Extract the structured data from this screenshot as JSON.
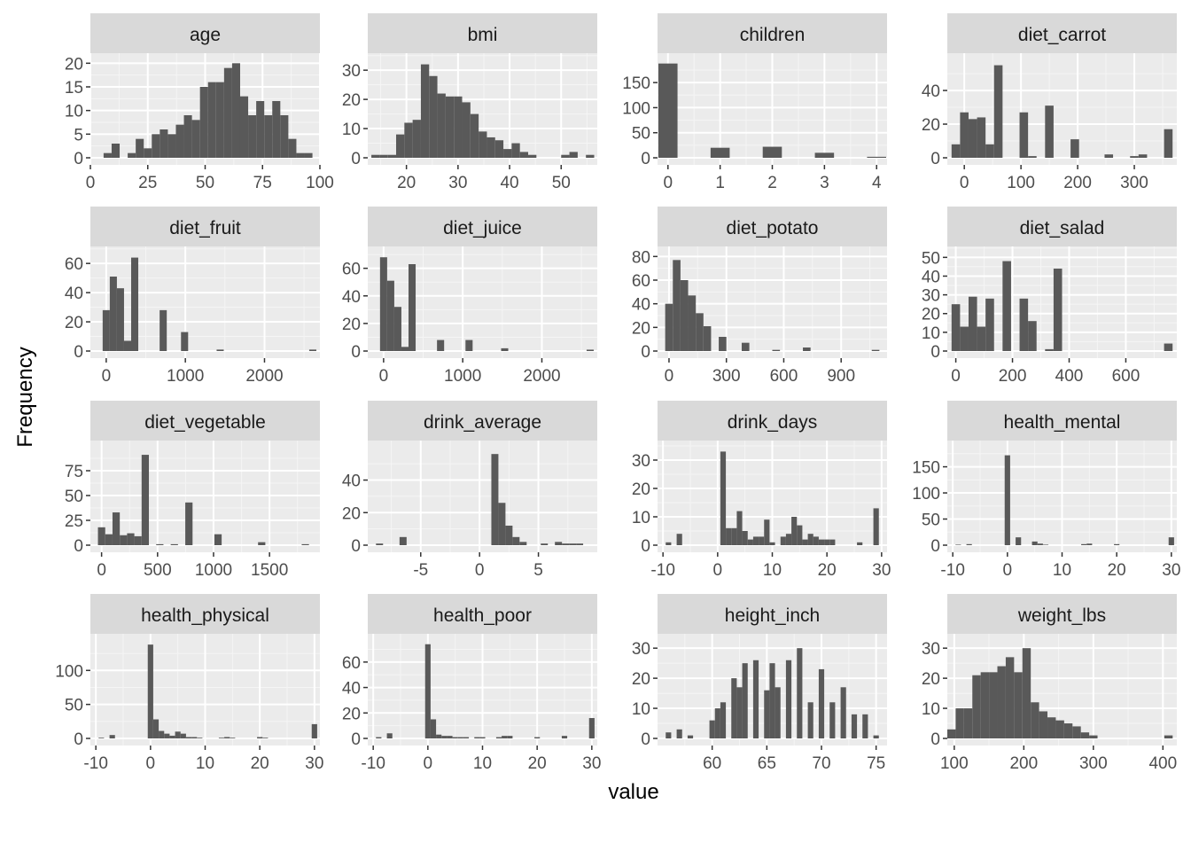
{
  "chart_data": {
    "type": "bar",
    "xlabel": "value",
    "ylabel": "Frequency",
    "facets": [
      {
        "name": "age",
        "xlim": [
          0,
          100
        ],
        "xticks": [
          0,
          25,
          50,
          75,
          100
        ],
        "yticks": [
          0,
          5,
          10,
          15,
          20
        ],
        "ylim": [
          0,
          21
        ],
        "x": [
          4,
          7.5,
          11,
          14.5,
          18,
          21.5,
          25,
          28.5,
          32,
          35.5,
          39,
          42.5,
          46,
          49.5,
          53,
          56.5,
          60,
          63.5,
          67,
          70.5,
          74,
          77.5,
          81,
          84.5,
          88,
          91.5,
          95
        ],
        "values": [
          0,
          1,
          3,
          0,
          1,
          4,
          2,
          5,
          6,
          5,
          7,
          9,
          8,
          15,
          16,
          16,
          19,
          20,
          13,
          9,
          12,
          9,
          12,
          9,
          4,
          1,
          1
        ]
      },
      {
        "name": "bmi",
        "xlim": [
          12.5,
          57
        ],
        "xticks": [
          20,
          30,
          40,
          50
        ],
        "yticks": [
          0,
          10,
          20,
          30
        ],
        "ylim": [
          0,
          34
        ],
        "x": [
          14,
          15.6,
          17.2,
          18.8,
          20.4,
          22,
          23.6,
          25.2,
          26.8,
          28.4,
          30,
          31.6,
          33.2,
          34.8,
          36.4,
          38,
          39.6,
          41.2,
          42.8,
          44.4,
          46,
          47.6,
          49.2,
          50.8,
          52.4,
          54,
          55.6
        ],
        "values": [
          1,
          1,
          1,
          8,
          12,
          13,
          32,
          28,
          22,
          21,
          21,
          19,
          15,
          9,
          7,
          6,
          3,
          5,
          2,
          1,
          0,
          0,
          0,
          1,
          2,
          0,
          1
        ]
      },
      {
        "name": "children",
        "xlim": [
          -0.2,
          4.2
        ],
        "xticks": [
          0,
          1,
          2,
          3,
          4
        ],
        "yticks": [
          0,
          50,
          100,
          150
        ],
        "ylim": [
          0,
          198
        ],
        "x": [
          0,
          1,
          2,
          3,
          4
        ],
        "values": [
          188,
          20,
          22,
          10,
          2
        ]
      },
      {
        "name": "diet_carrot",
        "xlim": [
          -30,
          375
        ],
        "xticks": [
          0,
          100,
          200,
          300
        ],
        "yticks": [
          0,
          20,
          40
        ],
        "ylim": [
          0,
          59
        ],
        "x": [
          -15,
          0,
          15,
          30,
          45,
          60,
          75,
          90,
          105,
          120,
          135,
          150,
          165,
          180,
          195,
          210,
          225,
          240,
          255,
          270,
          285,
          300,
          315,
          330,
          345,
          360
        ],
        "values": [
          8,
          27,
          23,
          24,
          8,
          55,
          0,
          0,
          27,
          1,
          0,
          31,
          0,
          0,
          11,
          0,
          0,
          0,
          2,
          0,
          0,
          1,
          2,
          0,
          0,
          17
        ]
      },
      {
        "name": "diet_fruit",
        "xlim": [
          -200,
          2700
        ],
        "xticks": [
          0,
          1000,
          2000
        ],
        "yticks": [
          0,
          20,
          40,
          60
        ],
        "ylim": [
          0,
          68
        ],
        "x": [
          0,
          90,
          180,
          270,
          360,
          450,
          540,
          630,
          720,
          810,
          900,
          990,
          1080,
          1440,
          1530,
          2520,
          2610
        ],
        "values": [
          28,
          51,
          43,
          7,
          64,
          0,
          0,
          0,
          28,
          0,
          0,
          13,
          0,
          1,
          0,
          0,
          1
        ]
      },
      {
        "name": "diet_juice",
        "xlim": [
          -200,
          2700
        ],
        "xticks": [
          0,
          1000,
          2000
        ],
        "yticks": [
          0,
          20,
          40,
          60
        ],
        "ylim": [
          0,
          72
        ],
        "x": [
          0,
          90,
          180,
          270,
          360,
          720,
          1080,
          1530,
          2610
        ],
        "values": [
          68,
          51,
          32,
          3,
          63,
          8,
          8,
          2,
          1
        ]
      },
      {
        "name": "diet_potato",
        "xlim": [
          -60,
          1140
        ],
        "xticks": [
          0,
          300,
          600,
          900
        ],
        "yticks": [
          0,
          20,
          40,
          60,
          80
        ],
        "ylim": [
          0,
          84
        ],
        "x": [
          0,
          40,
          80,
          120,
          160,
          200,
          240,
          280,
          320,
          360,
          400,
          440,
          480,
          520,
          560,
          600,
          640,
          680,
          720,
          1080
        ],
        "values": [
          40,
          77,
          60,
          47,
          32,
          21,
          0,
          12,
          0,
          0,
          7,
          0,
          0,
          0,
          1,
          0,
          0,
          0,
          3,
          1
        ]
      },
      {
        "name": "diet_salad",
        "xlim": [
          -30,
          780
        ],
        "xticks": [
          0,
          200,
          400,
          600
        ],
        "yticks": [
          0,
          10,
          20,
          30,
          40,
          50
        ],
        "ylim": [
          0,
          53
        ],
        "x": [
          0,
          30,
          60,
          90,
          120,
          150,
          180,
          210,
          240,
          270,
          300,
          330,
          360,
          750
        ],
        "values": [
          25,
          13,
          29,
          13,
          28,
          0,
          48,
          0,
          28,
          16,
          0,
          1,
          44,
          4
        ]
      },
      {
        "name": "diet_vegetable",
        "xlim": [
          -100,
          1950
        ],
        "xticks": [
          0,
          500,
          1000,
          1500
        ],
        "yticks": [
          0,
          25,
          50,
          75
        ],
        "ylim": [
          0,
          100
        ],
        "x": [
          0,
          65,
          130,
          195,
          260,
          325,
          390,
          520,
          650,
          780,
          1040,
          1430,
          1820
        ],
        "values": [
          18,
          11,
          33,
          10,
          12,
          9,
          91,
          1,
          1,
          43,
          11,
          3,
          1
        ]
      },
      {
        "name": "drink_average",
        "xlim": [
          -9.5,
          10
        ],
        "xticks": [
          -5,
          0,
          5
        ],
        "yticks": [
          0,
          20,
          40
        ],
        "ylim": [
          0,
          61
        ],
        "x": [
          -8.5,
          -6.5,
          1.3,
          1.9,
          2.5,
          3.1,
          3.7,
          4.3,
          5.5,
          6.1,
          6.7,
          7.3,
          7.9,
          8.5
        ],
        "values": [
          1,
          5,
          56,
          26,
          12,
          5,
          2,
          0,
          1,
          0,
          2,
          1,
          1,
          1
        ]
      },
      {
        "name": "drink_days",
        "xlim": [
          -11,
          31
        ],
        "xticks": [
          -10,
          0,
          10,
          20,
          30
        ],
        "yticks": [
          0,
          10,
          20,
          30
        ],
        "ylim": [
          0,
          35
        ],
        "x": [
          -9,
          -7,
          1,
          2,
          3,
          4,
          5,
          6,
          7,
          8,
          9,
          10,
          11,
          12,
          13,
          14,
          15,
          16,
          17,
          18,
          19,
          20,
          21,
          25,
          26,
          28,
          29,
          30
        ],
        "values": [
          1,
          4,
          33,
          6,
          6,
          12,
          5,
          2,
          3,
          3,
          9,
          1,
          0,
          3,
          4,
          10,
          7,
          2,
          4,
          3,
          2,
          2,
          2,
          0,
          1,
          0,
          13,
          0
        ]
      },
      {
        "name": "health_mental",
        "xlim": [
          -11,
          31
        ],
        "xticks": [
          -10,
          0,
          10,
          20,
          30
        ],
        "yticks": [
          0,
          50,
          100,
          150
        ],
        "ylim": [
          0,
          190
        ],
        "x": [
          -9,
          -7,
          0,
          1,
          2,
          3,
          4,
          5,
          6,
          7,
          14,
          15,
          20,
          30
        ],
        "values": [
          1,
          2,
          172,
          0,
          15,
          0,
          0,
          7,
          3,
          1,
          2,
          3,
          2,
          15
        ]
      },
      {
        "name": "health_physical",
        "xlim": [
          -11,
          31
        ],
        "xticks": [
          -10,
          0,
          10,
          20,
          30
        ],
        "yticks": [
          0,
          50,
          100
        ],
        "ylim": [
          0,
          146
        ],
        "x": [
          -9,
          -7,
          0,
          1,
          2,
          3,
          4,
          5,
          6,
          7,
          8,
          9,
          13,
          14,
          15,
          20,
          21,
          30
        ],
        "values": [
          1,
          5,
          138,
          28,
          11,
          7,
          4,
          10,
          7,
          2,
          2,
          1,
          1,
          2,
          1,
          2,
          1,
          21
        ]
      },
      {
        "name": "health_poor",
        "xlim": [
          -11,
          31
        ],
        "xticks": [
          -10,
          0,
          10,
          20,
          30
        ],
        "yticks": [
          0,
          20,
          40,
          60
        ],
        "ylim": [
          0,
          78
        ],
        "x": [
          -9,
          -7,
          0,
          1,
          2,
          3,
          4,
          5,
          6,
          7,
          9,
          10,
          12,
          13,
          14,
          15,
          20,
          25,
          30
        ],
        "values": [
          1,
          4,
          74,
          15,
          3,
          2,
          2,
          1,
          1,
          1,
          1,
          1,
          0,
          1,
          2,
          2,
          1,
          2,
          16
        ]
      },
      {
        "name": "height_inch",
        "xlim": [
          55,
          76
        ],
        "xticks": [
          60,
          65,
          70,
          75
        ],
        "yticks": [
          0,
          10,
          20,
          30
        ],
        "ylim": [
          0,
          33
        ],
        "x": [
          56,
          57,
          58,
          59,
          60,
          60.5,
          61,
          62,
          62.5,
          63,
          64,
          65,
          65.5,
          66,
          67,
          68,
          69,
          69.5,
          70,
          71,
          72,
          73,
          74,
          75
        ],
        "values": [
          2,
          3,
          1,
          0,
          6,
          10,
          12,
          20,
          17,
          25,
          26,
          16,
          25,
          17,
          26,
          30,
          12,
          0,
          23,
          12,
          17,
          8,
          8,
          1
        ]
      },
      {
        "name": "weight_lbs",
        "xlim": [
          90,
          420
        ],
        "xticks": [
          100,
          200,
          300,
          400
        ],
        "yticks": [
          0,
          10,
          20,
          30
        ],
        "ylim": [
          0,
          33
        ],
        "x": [
          96,
          108,
          120,
          132,
          144,
          156,
          168,
          180,
          192,
          204,
          216,
          228,
          240,
          252,
          264,
          276,
          288,
          300,
          408
        ],
        "values": [
          3,
          10,
          10,
          21,
          22,
          22,
          24,
          27,
          22,
          30,
          12,
          9,
          7,
          6,
          5,
          4,
          2,
          1,
          1
        ]
      }
    ]
  }
}
